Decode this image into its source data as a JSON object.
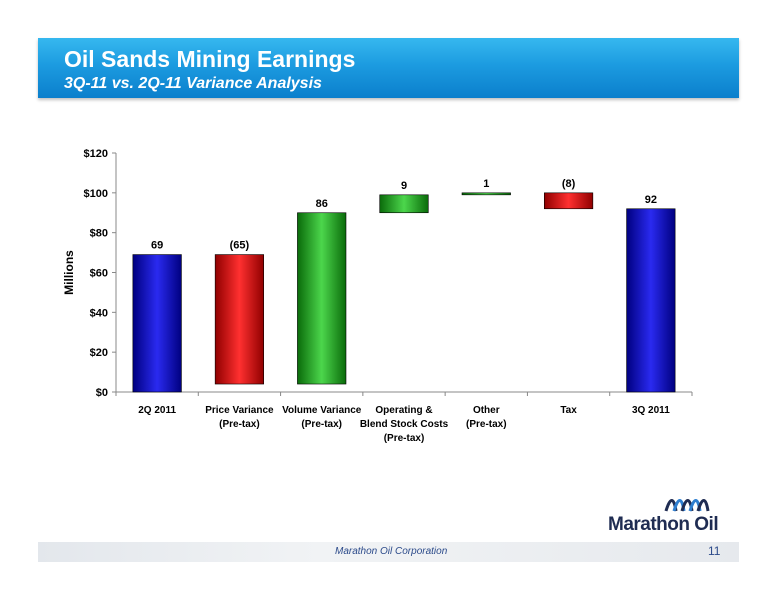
{
  "header": {
    "title": "Oil Sands Mining Earnings",
    "subtitle": "3Q-11 vs. 2Q-11 Variance Analysis"
  },
  "footer": {
    "company": "Marathon Oil Corporation",
    "page_number": "11"
  },
  "logo": {
    "text": "Marathon Oil",
    "icon": "marathon-wave-icon"
  },
  "colors": {
    "banner": "#1c9be0",
    "positive": "#22a822",
    "negative": "#e8191b",
    "total": "#1515c8"
  },
  "chart_data": {
    "type": "bar",
    "subtype": "waterfall",
    "ylabel": "Millions",
    "xlabel": "",
    "ylim": [
      0,
      120
    ],
    "yticks": [
      0,
      20,
      40,
      60,
      80,
      100,
      120
    ],
    "ytick_labels": [
      "$0",
      "$20",
      "$40",
      "$60",
      "$80",
      "$100",
      "$120"
    ],
    "grid": false,
    "legend": "none",
    "categories": [
      [
        "2Q 2011"
      ],
      [
        "Price Variance",
        "(Pre-tax)"
      ],
      [
        "Volume Variance",
        "(Pre-tax)"
      ],
      [
        "Operating &",
        "Blend Stock Costs",
        "(Pre-tax)"
      ],
      [
        "Other",
        "(Pre-tax)"
      ],
      [
        "Tax"
      ],
      [
        "3Q 2011"
      ]
    ],
    "bars": [
      {
        "kind": "total",
        "start": 0,
        "end": 69,
        "label": "69"
      },
      {
        "kind": "decrease",
        "start": 69,
        "end": 4,
        "label": "(65)"
      },
      {
        "kind": "increase",
        "start": 4,
        "end": 90,
        "label": "86"
      },
      {
        "kind": "increase",
        "start": 90,
        "end": 99,
        "label": "9"
      },
      {
        "kind": "increase",
        "start": 99,
        "end": 100,
        "label": "1"
      },
      {
        "kind": "decrease",
        "start": 100,
        "end": 92,
        "label": "(8)"
      },
      {
        "kind": "total",
        "start": 0,
        "end": 92,
        "label": "92"
      }
    ]
  }
}
